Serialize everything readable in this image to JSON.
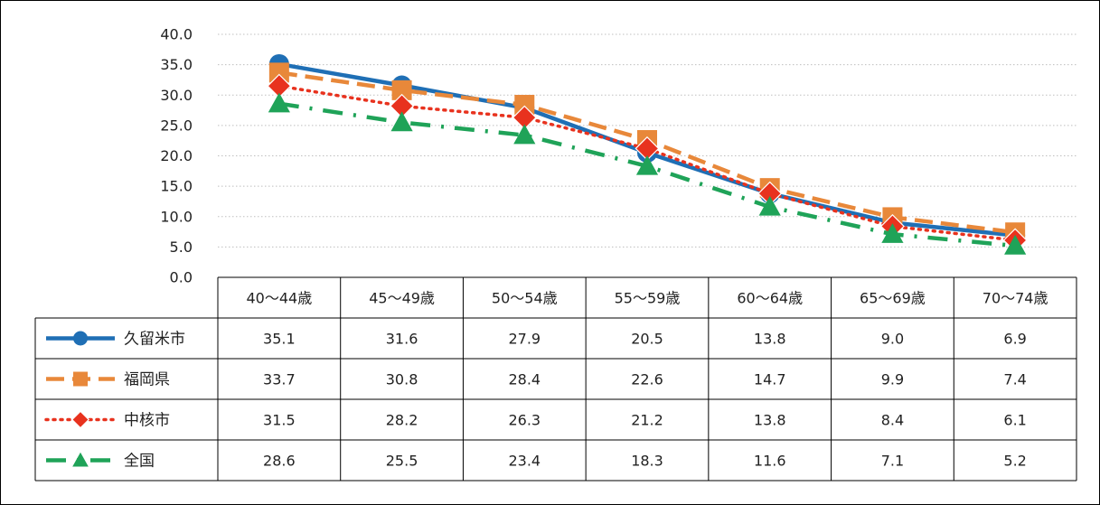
{
  "chart_data": {
    "type": "line",
    "title": "",
    "xlabel": "",
    "ylabel": "",
    "categories": [
      "40～44歳",
      "45～49歳",
      "50～54歳",
      "55～59歳",
      "60～64歳",
      "65～69歳",
      "70～74歳"
    ],
    "ylim": [
      0,
      40
    ],
    "yticks": [
      "0.0",
      "5.0",
      "10.0",
      "15.0",
      "20.0",
      "25.0",
      "30.0",
      "35.0",
      "40.0"
    ],
    "grid": "horizontal dotted",
    "legend_placement": "data table (bottom)",
    "series": [
      {
        "name": "久留米市",
        "color": "#1F6FB5",
        "line": "solid",
        "marker": "circle",
        "values": [
          35.1,
          31.6,
          27.9,
          20.5,
          13.8,
          9.0,
          6.9
        ],
        "labels": [
          "35.1",
          "31.6",
          "27.9",
          "20.5",
          "13.8",
          "9.0",
          "6.9"
        ]
      },
      {
        "name": "福岡県",
        "color": "#E8883A",
        "line": "dashed",
        "marker": "square",
        "values": [
          33.7,
          30.8,
          28.4,
          22.6,
          14.7,
          9.9,
          7.4
        ],
        "labels": [
          "33.7",
          "30.8",
          "28.4",
          "22.6",
          "14.7",
          "9.9",
          "7.4"
        ]
      },
      {
        "name": "中核市",
        "color": "#E8321E",
        "line": "dotted",
        "marker": "diamond",
        "values": [
          31.5,
          28.2,
          26.3,
          21.2,
          13.8,
          8.4,
          6.1
        ],
        "labels": [
          "31.5",
          "28.2",
          "26.3",
          "21.2",
          "13.8",
          "8.4",
          "6.1"
        ]
      },
      {
        "name": "全国",
        "color": "#1FA358",
        "line": "dash-dot",
        "marker": "triangle",
        "values": [
          28.6,
          25.5,
          23.4,
          18.3,
          11.6,
          7.1,
          5.2
        ],
        "labels": [
          "28.6",
          "25.5",
          "23.4",
          "18.3",
          "11.6",
          "7.1",
          "5.2"
        ]
      }
    ]
  }
}
